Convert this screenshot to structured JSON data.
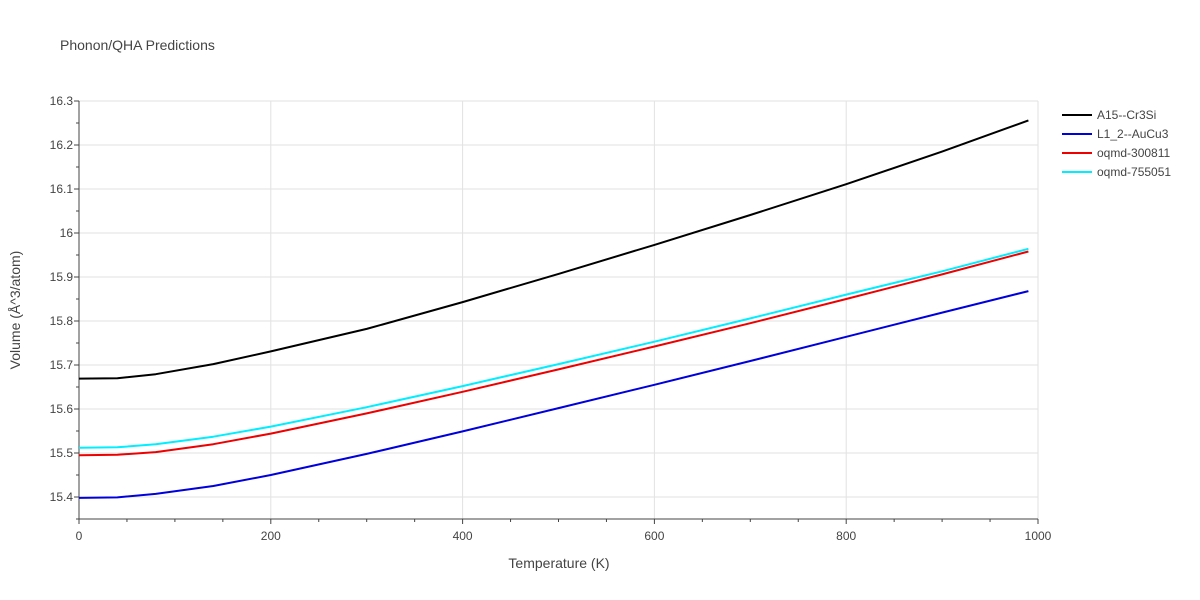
{
  "chart_data": {
    "type": "line",
    "title": "Phonon/QHA Predictions",
    "xlabel": "Temperature (K)",
    "ylabel": "Volume (Å^3/atom)",
    "xlim": [
      0,
      1000
    ],
    "ylim": [
      15.35,
      16.3
    ],
    "x_ticks": [
      0,
      200,
      400,
      600,
      800,
      1000
    ],
    "x_tick_labels": [
      "0",
      "200",
      "400",
      "600",
      "800",
      "1000"
    ],
    "y_ticks": [
      15.4,
      15.5,
      15.6,
      15.7,
      15.8,
      15.9,
      16.0,
      16.1,
      16.2,
      16.3
    ],
    "y_tick_labels": [
      "15.4",
      "15.5",
      "15.6",
      "15.7",
      "15.8",
      "15.9",
      "16",
      "16.1",
      "16.2",
      "16.3"
    ],
    "grid": true,
    "legend_position": "right",
    "series": [
      {
        "name": "A15--Cr3Si",
        "color": "#000000",
        "x": [
          0,
          40,
          80,
          140,
          200,
          300,
          400,
          500,
          600,
          700,
          800,
          900,
          990
        ],
        "y": [
          15.669,
          15.67,
          15.679,
          15.702,
          15.731,
          15.782,
          15.843,
          15.907,
          15.973,
          16.041,
          16.111,
          16.185,
          16.256
        ]
      },
      {
        "name": "L1_2--AuCu3",
        "color": "#0000dd",
        "x": [
          0,
          40,
          80,
          140,
          200,
          300,
          400,
          500,
          600,
          700,
          800,
          900,
          990
        ],
        "y": [
          15.398,
          15.399,
          15.407,
          15.425,
          15.45,
          15.498,
          15.549,
          15.602,
          15.655,
          15.709,
          15.764,
          15.819,
          15.868
        ]
      },
      {
        "name": "oqmd-300811",
        "color": "#ee0000",
        "x": [
          0,
          40,
          80,
          140,
          200,
          300,
          400,
          500,
          600,
          700,
          800,
          900,
          990
        ],
        "y": [
          15.495,
          15.496,
          15.502,
          15.52,
          15.544,
          15.59,
          15.639,
          15.69,
          15.742,
          15.795,
          15.85,
          15.906,
          15.958
        ]
      },
      {
        "name": "oqmd-755051",
        "color": "#00eeff",
        "x": [
          0,
          40,
          80,
          140,
          200,
          300,
          400,
          500,
          600,
          700,
          800,
          900,
          990
        ],
        "y": [
          15.512,
          15.513,
          15.52,
          15.537,
          15.56,
          15.604,
          15.652,
          15.702,
          15.753,
          15.806,
          15.86,
          15.913,
          15.964
        ]
      }
    ]
  }
}
